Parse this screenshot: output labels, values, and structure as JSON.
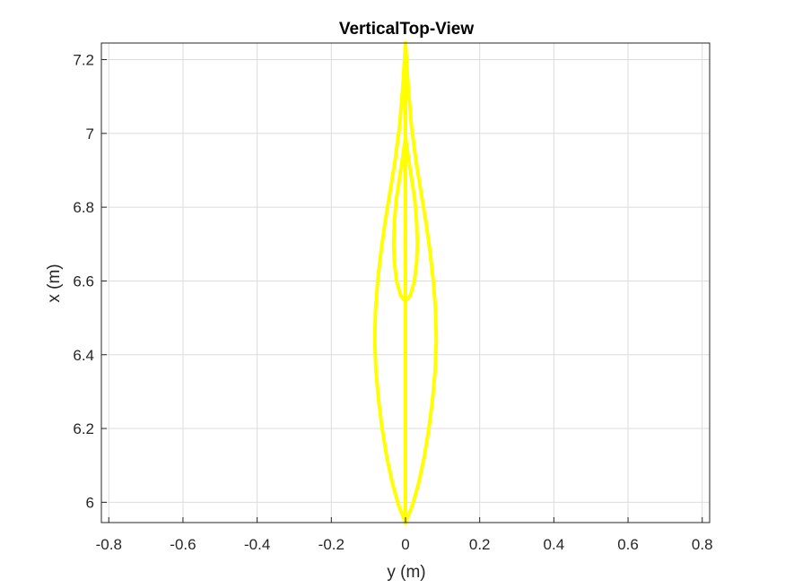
{
  "chart_data": {
    "type": "line",
    "title": "VerticalTop-View",
    "xlabel": "y (m)",
    "ylabel": "x (m)",
    "xlim": [
      -0.82,
      0.82
    ],
    "ylim": [
      5.945,
      7.245
    ],
    "x_ticks": [
      -0.8,
      -0.6,
      -0.4,
      -0.2,
      0,
      0.2,
      0.4,
      0.6,
      0.8
    ],
    "x_tick_labels": [
      "-0.8",
      "-0.6",
      "-0.4",
      "-0.2",
      "0",
      "0.2",
      "0.4",
      "0.6",
      "0.8"
    ],
    "y_ticks": [
      6,
      6.2,
      6.4,
      6.6,
      6.8,
      7,
      7.2
    ],
    "y_tick_labels": [
      "6",
      "6.2",
      "6.4",
      "6.6",
      "6.8",
      "7",
      "7.2"
    ],
    "grid": true,
    "line_color": "#ffff00",
    "series": [
      {
        "x": [
          0,
          0.018,
          0.035,
          0.05,
          0.063,
          0.073,
          0.08,
          0.083,
          0.081,
          0.075,
          0.066,
          0.055,
          0.042,
          0.029,
          0.016,
          0.007,
          0,
          -0.007,
          -0.016,
          -0.029,
          -0.042,
          -0.055,
          -0.066,
          -0.075,
          -0.081,
          -0.083,
          -0.08,
          -0.073,
          -0.063,
          -0.05,
          -0.035,
          -0.018,
          0
        ],
        "y": [
          5.945,
          5.99,
          6.05,
          6.12,
          6.2,
          6.28,
          6.36,
          6.44,
          6.52,
          6.6,
          6.68,
          6.76,
          6.84,
          6.92,
          7.02,
          7.13,
          7.245,
          7.13,
          7.02,
          6.92,
          6.84,
          6.76,
          6.68,
          6.6,
          6.52,
          6.44,
          6.36,
          6.28,
          6.2,
          6.12,
          6.05,
          5.99,
          5.945
        ]
      },
      {
        "x": [
          0,
          0.013,
          0.024,
          0.03,
          0.032,
          0.03,
          0.025,
          0.016,
          0.007,
          0,
          -0.007,
          -0.016,
          -0.025,
          -0.03,
          -0.032,
          -0.03,
          -0.024,
          -0.013,
          0
        ],
        "y": [
          6.545,
          6.56,
          6.6,
          6.65,
          6.7,
          6.76,
          6.82,
          6.88,
          6.94,
          6.99,
          6.94,
          6.88,
          6.82,
          6.76,
          6.7,
          6.65,
          6.6,
          6.56,
          6.545
        ]
      },
      {
        "x": [
          0,
          0
        ],
        "y": [
          5.945,
          7.245
        ]
      }
    ]
  }
}
